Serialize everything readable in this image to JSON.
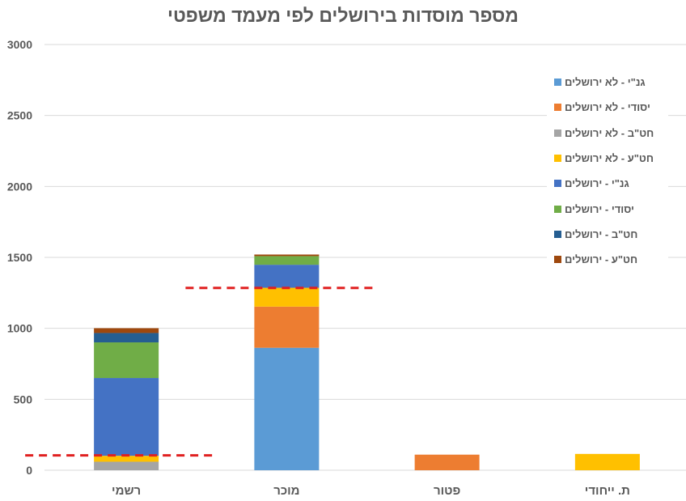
{
  "chart_data": {
    "type": "bar",
    "stacked": true,
    "title": "מספר מוסדות בירושלים לפי מעמד משפטי",
    "xlabel": "",
    "ylabel": "",
    "ylim": [
      0,
      3000
    ],
    "yticks": [
      "0",
      "500",
      "1000",
      "1500",
      "2000",
      "2500",
      "3000"
    ],
    "ytick_values": [
      0,
      500,
      1000,
      1500,
      2000,
      2500,
      3000
    ],
    "grid": true,
    "legend_position": "right",
    "categories": [
      "רשמי",
      "מוכר",
      "פטור",
      "ת. ייחודי"
    ],
    "series": [
      {
        "name": "גנ\"י - לא ירושלים",
        "color": "#5B9BD5",
        "values": [
          0,
          863,
          0,
          0
        ]
      },
      {
        "name": "יסודי - לא ירושלים",
        "color": "#ED7D31",
        "values": [
          0,
          290,
          110,
          0
        ]
      },
      {
        "name": "חט\"ב - לא ירושלים",
        "color": "#A5A5A5",
        "values": [
          60,
          0,
          0,
          0
        ]
      },
      {
        "name": "חט\"ע - לא ירושלים",
        "color": "#FFC000",
        "values": [
          42,
          133,
          0,
          115
        ]
      },
      {
        "name": "גנ\"י - ירושלים",
        "color": "#4472C4",
        "values": [
          548,
          162,
          0,
          0
        ]
      },
      {
        "name": "יסודי - ירושלים",
        "color": "#70AD47",
        "values": [
          251,
          61,
          0,
          0
        ]
      },
      {
        "name": "חט\"ב - ירושלים",
        "color": "#255E91",
        "values": [
          66,
          0,
          0,
          0
        ]
      },
      {
        "name": "חט\"ע - ירושלים",
        "color": "#9E480E",
        "values": [
          34,
          11,
          0,
          0
        ]
      }
    ],
    "reference_lines": [
      {
        "category": "רשמי",
        "value": 105,
        "color": "#E02020",
        "style": "dashed"
      },
      {
        "category": "מוכר",
        "value": 1285,
        "color": "#E02020",
        "style": "dashed"
      }
    ]
  }
}
